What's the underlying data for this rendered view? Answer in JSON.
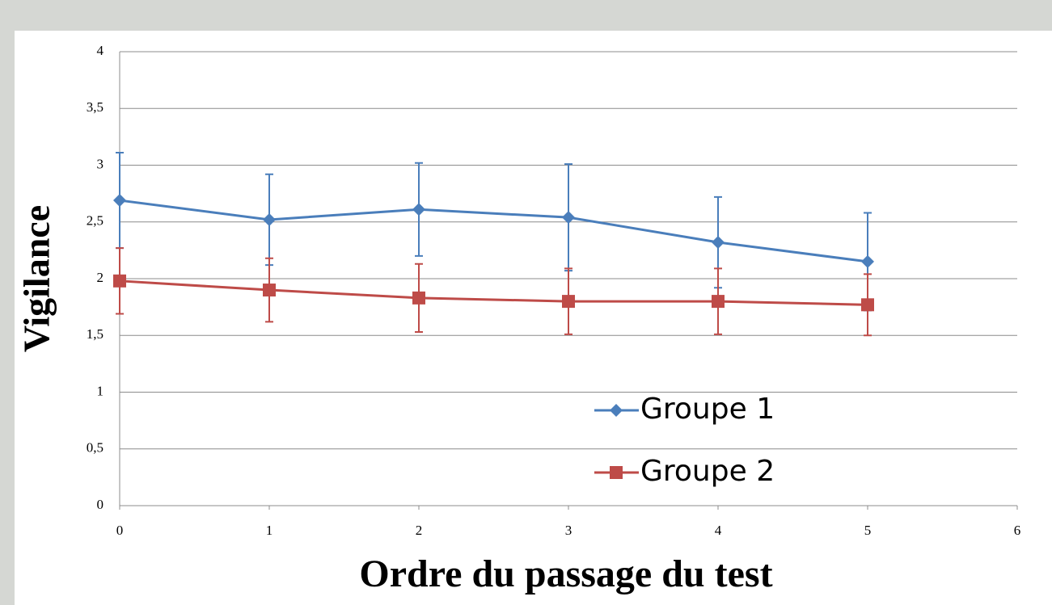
{
  "chart_data": {
    "type": "line",
    "x_label": "Ordre du passage du test",
    "y_label": "Vigilance",
    "x": [
      0,
      1,
      2,
      3,
      4,
      5
    ],
    "series": [
      {
        "name": "Groupe 1",
        "color": "#4a7ebb",
        "marker": "diamond",
        "values": [
          2.69,
          2.52,
          2.61,
          2.54,
          2.32,
          2.15
        ],
        "errors": [
          0.42,
          0.4,
          0.41,
          0.47,
          0.4,
          0.43
        ]
      },
      {
        "name": "Groupe 2",
        "color": "#be4b48",
        "marker": "square",
        "values": [
          1.98,
          1.9,
          1.83,
          1.8,
          1.8,
          1.77
        ],
        "errors": [
          0.29,
          0.28,
          0.3,
          0.29,
          0.29,
          0.27
        ]
      }
    ],
    "xlim": [
      0,
      6
    ],
    "xticks": [
      0,
      1,
      2,
      3,
      4,
      5,
      6
    ],
    "ylim": [
      0,
      4
    ],
    "yticks": [
      0,
      {
        "value": 0.5,
        "label": "0,5"
      },
      1,
      {
        "value": 1.5,
        "label": "1,5"
      },
      2,
      {
        "value": 2.5,
        "label": "2,5"
      },
      3,
      {
        "value": 3.5,
        "label": "3,5"
      },
      4
    ],
    "grid": true,
    "legend_position": "lower center"
  }
}
